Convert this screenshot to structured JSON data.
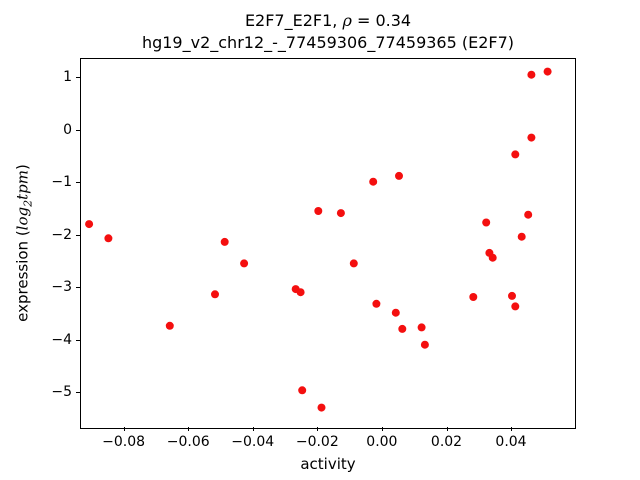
{
  "chart_data": {
    "type": "scatter",
    "title": {
      "prefix": "E2F7_E2F1, ",
      "rho": "ρ",
      "suffix": " = 0.34"
    },
    "subtitle": "hg19_v2_chr12_-_77459306_77459365 (E2F7)",
    "xlabel": "activity",
    "ylabel": {
      "prefix": "expression (",
      "log": "log",
      "sub": "2",
      "var": "tpm",
      "suffix": ")"
    },
    "xlim": [
      -0.0935,
      0.0595
    ],
    "ylim": [
      -5.67,
      1.37
    ],
    "x_ticks": [
      -0.08,
      -0.06,
      -0.04,
      -0.02,
      0.0,
      0.02,
      0.04
    ],
    "x_tick_labels": [
      "−0.08",
      "−0.06",
      "−0.04",
      "−0.02",
      "0.00",
      "0.02",
      "0.04"
    ],
    "y_ticks": [
      1,
      0,
      -1,
      -2,
      -3,
      -4,
      -5
    ],
    "y_tick_labels": [
      "1",
      "0",
      "−1",
      "−2",
      "−3",
      "−4",
      "−5"
    ],
    "point_color": "#f40f0f",
    "marker_size": 8,
    "points": [
      [
        -0.091,
        -1.78
      ],
      [
        -0.085,
        -2.05
      ],
      [
        -0.066,
        -3.72
      ],
      [
        -0.052,
        -3.12
      ],
      [
        -0.049,
        -2.12
      ],
      [
        -0.043,
        -2.53
      ],
      [
        -0.027,
        -3.02
      ],
      [
        -0.0255,
        -3.08
      ],
      [
        -0.025,
        -4.95
      ],
      [
        -0.02,
        -1.53
      ],
      [
        -0.019,
        -5.28
      ],
      [
        -0.013,
        -1.57
      ],
      [
        -0.009,
        -2.53
      ],
      [
        -0.003,
        -0.97
      ],
      [
        -0.002,
        -3.3
      ],
      [
        0.004,
        -3.47
      ],
      [
        0.005,
        -0.86
      ],
      [
        0.006,
        -3.78
      ],
      [
        0.012,
        -3.75
      ],
      [
        0.013,
        -4.08
      ],
      [
        0.028,
        -3.17
      ],
      [
        0.032,
        -1.75
      ],
      [
        0.033,
        -2.33
      ],
      [
        0.034,
        -2.42
      ],
      [
        0.04,
        -3.15
      ],
      [
        0.041,
        -0.45
      ],
      [
        0.041,
        -3.35
      ],
      [
        0.043,
        -2.02
      ],
      [
        0.045,
        -1.6
      ],
      [
        0.046,
        -0.13
      ],
      [
        0.046,
        1.07
      ],
      [
        0.051,
        1.13
      ]
    ]
  }
}
